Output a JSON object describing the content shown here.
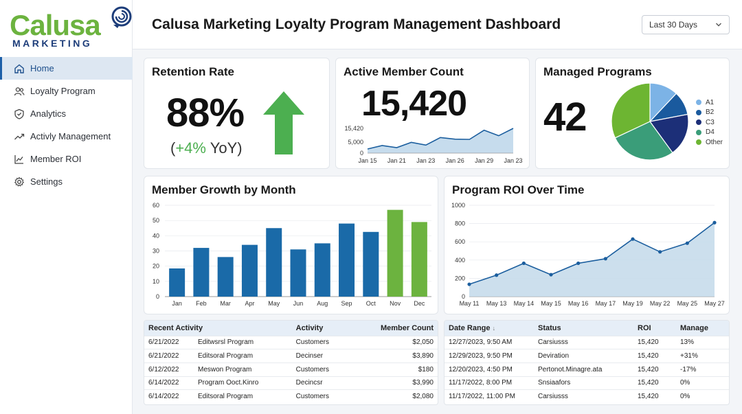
{
  "brand": {
    "name": "Calusa",
    "sub": "MARKETING"
  },
  "header": {
    "title": "Calusa Marketing Loyalty Program Management Dashboard",
    "range": "Last 30 Days"
  },
  "sidebar": {
    "items": [
      {
        "label": "Home",
        "icon": "home-icon"
      },
      {
        "label": "Loyalty Program",
        "icon": "users-icon"
      },
      {
        "label": "Analytics",
        "icon": "shield-icon"
      },
      {
        "label": "Activly Management",
        "icon": "trend-icon"
      },
      {
        "label": "Member ROI",
        "icon": "line-chart-icon"
      },
      {
        "label": "Settings",
        "icon": "gear-icon"
      }
    ]
  },
  "retention": {
    "title": "Retention Rate",
    "value": "88%",
    "change": "+4%",
    "change_prefix": "(",
    "change_suffix": " YoY)"
  },
  "active_members": {
    "title": "Active Member Count",
    "value": "15,420",
    "chart_data": {
      "type": "area",
      "x": [
        "Jan 15",
        "",
        "Jan 21",
        "",
        "Jan 23",
        "",
        "Jan 26",
        "",
        "Jan 29",
        "",
        "Jan 23"
      ],
      "xticks": [
        "Jan 15",
        "Jan 21",
        "Jan 23",
        "Jan 26",
        "Jan 29",
        "Jan 23"
      ],
      "values": [
        1800,
        3300,
        2400,
        4700,
        3500,
        6800,
        6100,
        6000,
        10000,
        7600,
        10800
      ],
      "yticks": [
        "15,420",
        "5,000",
        "0"
      ],
      "ylim": [
        0,
        15420
      ]
    }
  },
  "managed_programs": {
    "title": "Managed Programs",
    "value": "42",
    "chart_data": {
      "type": "pie",
      "labels": [
        "A1",
        "B2",
        "C3",
        "D4",
        "Other"
      ],
      "values": [
        12,
        10,
        18,
        28,
        32
      ],
      "colors": [
        "#7cb3e6",
        "#1a5a9e",
        "#1c2f78",
        "#3a9d79",
        "#6db532"
      ]
    }
  },
  "member_growth": {
    "title": "Member Growth by Month",
    "chart_data": {
      "type": "bar",
      "categories": [
        "Jan",
        "Feb",
        "Mar",
        "Apr",
        "May",
        "Jun",
        "Aug",
        "Sep",
        "Oct",
        "Nov",
        "Dec"
      ],
      "values": [
        18.5,
        32,
        26,
        34,
        45,
        31,
        35,
        48,
        42.5,
        57,
        49
      ],
      "highlight": [
        false,
        false,
        false,
        false,
        false,
        false,
        false,
        false,
        false,
        true,
        true
      ],
      "ylim": [
        0,
        60
      ],
      "yticks": [
        0,
        10,
        20,
        30,
        40,
        50,
        60
      ],
      "color": "#1a6aa8",
      "highlight_color": "#6cb33f"
    }
  },
  "roi_over_time": {
    "title": "Program ROI Over Time",
    "chart_data": {
      "type": "area",
      "categories": [
        "May 11",
        "May 13",
        "May 14",
        "May 15",
        "May 16",
        "May 17",
        "May 19",
        "May 22",
        "May 25",
        "May 27"
      ],
      "values": [
        135,
        235,
        365,
        240,
        365,
        415,
        630,
        490,
        585,
        810
      ],
      "ylim": [
        0,
        1000
      ],
      "yticks": [
        0,
        200,
        400,
        600,
        800,
        1000
      ]
    }
  },
  "recent_activity": {
    "headers": [
      "Recent Activity",
      "Activity",
      "Member Count"
    ],
    "rows": [
      {
        "date": "6/21/2022",
        "program": "Editwsrsl Program",
        "activity": "Customers",
        "count": "$2,050"
      },
      {
        "date": "6/21/2022",
        "program": "Editsoral Program",
        "activity": "Decinser",
        "count": "$3,890"
      },
      {
        "date": "6/12/2022",
        "program": "Meswon Program",
        "activity": "Customers",
        "count": "$180"
      },
      {
        "date": "6/14/2022",
        "program": "Program Ooct.Kinro",
        "activity": "Decincsr",
        "count": "$3,990"
      },
      {
        "date": "6/14/2022",
        "program": "Editsoral Program",
        "activity": "Customers",
        "count": "$2,080"
      }
    ]
  },
  "date_table": {
    "headers": [
      "Date Range",
      "Status",
      "ROI",
      "Manage"
    ],
    "sort_indicator": "↓",
    "rows": [
      {
        "date": "12/27/2023, 9:50 AM",
        "status": "Carsiusss",
        "roi": "15,420",
        "manage": "13%",
        "tone": "pos"
      },
      {
        "date": "12/29/2023, 9:50 PM",
        "status": "Deviration",
        "roi": "15,420",
        "manage": "+31%",
        "tone": "pos"
      },
      {
        "date": "12/20/2023, 4:50 PM",
        "status": "Pertonot.Minagre.ata",
        "roi": "15,420",
        "manage": "-17%",
        "tone": "neg"
      },
      {
        "date": "11/17/2022, 8:00 PM",
        "status": "Snsiaafors",
        "roi": "15,420",
        "manage": "0%",
        "tone": "neutral"
      },
      {
        "date": "11/17/2022, 11:00 PM",
        "status": "Carsiusss",
        "roi": "15,420",
        "manage": "0%",
        "tone": "neutral"
      }
    ]
  }
}
